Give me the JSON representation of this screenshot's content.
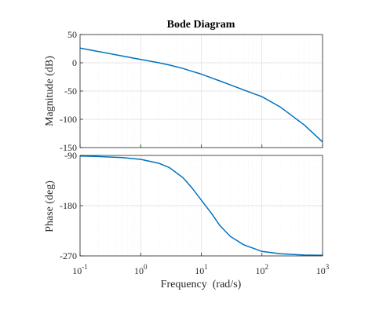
{
  "chart_data": {
    "type": "line",
    "title": "Bode Diagram",
    "xlabel": "Frequency  (rad/s)",
    "x_scale": "log",
    "xlim": [
      0.1,
      1000
    ],
    "x_ticks": [
      {
        "base": "10",
        "exp": "-1"
      },
      {
        "base": "10",
        "exp": "0"
      },
      {
        "base": "10",
        "exp": "1"
      },
      {
        "base": "10",
        "exp": "2"
      },
      {
        "base": "10",
        "exp": "3"
      }
    ],
    "grid": true,
    "line_color": "#0072BD",
    "subplots": [
      {
        "name": "magnitude",
        "ylabel": "Magnitude (dB)",
        "ylim": [
          -150,
          50
        ],
        "y_ticks": [
          "50",
          "0",
          "-50",
          "-100",
          "-150"
        ],
        "series": [
          {
            "x": [
              0.1,
              0.2,
              0.5,
              1,
              2,
              3,
              5,
              7,
              10,
              15,
              20,
              30,
              50,
              100,
              200,
              500,
              1000
            ],
            "values": [
              26,
              20,
              12,
              6,
              0,
              -4,
              -10,
              -15,
              -20,
              -27,
              -32,
              -39,
              -48,
              -60,
              -78,
              -110,
              -140
            ]
          }
        ]
      },
      {
        "name": "phase",
        "ylabel": "Phase (deg)",
        "ylim": [
          -270,
          -90
        ],
        "y_ticks": [
          "-90",
          "-180",
          "-270"
        ],
        "series": [
          {
            "x": [
              0.1,
              0.2,
              0.5,
              1,
              2,
              3,
              5,
              7,
              10,
              15,
              20,
              30,
              50,
              100,
              200,
              500,
              1000
            ],
            "values": [
              -91,
              -92,
              -94,
              -97,
              -104,
              -112,
              -130,
              -148,
              -170,
              -195,
              -215,
              -235,
              -250,
              -262,
              -266,
              -268.5,
              -269
            ]
          }
        ]
      }
    ]
  }
}
